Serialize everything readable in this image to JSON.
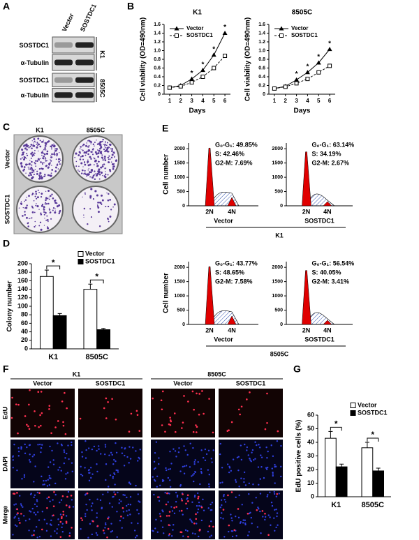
{
  "panel_letters": [
    "A",
    "B",
    "C",
    "D",
    "E",
    "F",
    "G"
  ],
  "blots": {
    "columns": [
      "Vector",
      "SOSTDC1"
    ],
    "groups": [
      {
        "name": "K1",
        "rows": [
          "SOSTDC1",
          "α-Tubulin"
        ]
      },
      {
        "name": "8505C",
        "rows": [
          "SOSTDC1",
          "α-Tubulin"
        ]
      }
    ]
  },
  "colony_images": {
    "columns": [
      "K1",
      "8505C"
    ],
    "rows": [
      "Vector",
      "SOSTDC1"
    ]
  },
  "flow_cytometry": {
    "y_label": "Cell number",
    "ylim": [
      0,
      2200
    ],
    "yticks": [
      0,
      500,
      1000,
      1500,
      2000
    ],
    "peak_labels": [
      "2N",
      "4N"
    ],
    "groups": [
      {
        "name": "K1",
        "panels": [
          {
            "name": "Vector",
            "stats": [
              "G₀-G₁: 49.85%",
              "S: 42.46%",
              "G2-M: 7.69%"
            ]
          },
          {
            "name": "SOSTDC1",
            "stats": [
              "G₀-G₁: 63.14%",
              "S: 34.19%",
              "G2-M: 2.67%"
            ]
          }
        ]
      },
      {
        "name": "8505C",
        "panels": [
          {
            "name": "Vector",
            "stats": [
              "G₀-G₁: 43.77%",
              "S: 48.65%",
              "G2-M: 7.58%"
            ]
          },
          {
            "name": "SOSTDC1",
            "stats": [
              "G₀-G₁: 56.54%",
              "S: 40.05%",
              "G2-M: 3.41%"
            ]
          }
        ]
      }
    ]
  },
  "edu_images": {
    "groups": [
      {
        "name": "K1",
        "columns": [
          "Vector",
          "SOSTDC1"
        ]
      },
      {
        "name": "8505C",
        "columns": [
          "Vector",
          "SOSTDC1"
        ]
      }
    ],
    "rows": [
      "EdU",
      "DAPI",
      "Merge"
    ]
  },
  "chart_data": [
    {
      "type": "line",
      "title": "K1",
      "x_label": "Days",
      "y_label": "Cell viability (OD=490nm)",
      "x": [
        1,
        2,
        3,
        4,
        5,
        6
      ],
      "xlim": [
        0.5,
        6.5
      ],
      "xticks": [
        1,
        2,
        3,
        4,
        5,
        6
      ],
      "ylim": [
        0,
        1.6
      ],
      "yticks": [
        0,
        0.2,
        0.4,
        0.6,
        0.8,
        {
          "value": 1,
          "label": "1.0"
        },
        1.2,
        1.4,
        1.6
      ],
      "series": [
        {
          "name": "Vector",
          "color": "#000000",
          "marker": "triangle",
          "line_style": "solid",
          "values": [
            0.15,
            0.2,
            0.35,
            0.55,
            0.9,
            1.4
          ]
        },
        {
          "name": "SOSTDC1",
          "color": "#000000",
          "marker": "square",
          "line_style": "dashed",
          "values": [
            0.15,
            0.18,
            0.27,
            0.4,
            0.6,
            0.88
          ]
        }
      ],
      "significance": [
        null,
        null,
        "*",
        "*",
        "*",
        "*"
      ]
    },
    {
      "type": "line",
      "title": "8505C",
      "x_label": "Days",
      "y_label": "Cell viability (OD=490nm)",
      "x": [
        1,
        2,
        3,
        4,
        5,
        6
      ],
      "xlim": [
        0.5,
        6.5
      ],
      "xticks": [
        1,
        2,
        3,
        4,
        5,
        6
      ],
      "ylim": [
        0,
        1.6
      ],
      "yticks": [
        0,
        0.2,
        0.4,
        0.6,
        0.8,
        {
          "value": 1,
          "label": "1.0"
        },
        1.2,
        1.4,
        1.6
      ],
      "series": [
        {
          "name": "Vector",
          "color": "#000000",
          "marker": "triangle",
          "line_style": "solid",
          "values": [
            0.13,
            0.18,
            0.33,
            0.5,
            0.72,
            1.03
          ]
        },
        {
          "name": "SOSTDC1",
          "color": "#000000",
          "marker": "square",
          "line_style": "dashed",
          "values": [
            0.13,
            0.17,
            0.25,
            0.35,
            0.5,
            0.65
          ]
        }
      ],
      "significance": [
        null,
        null,
        "*",
        "*",
        "*",
        "*"
      ]
    },
    {
      "type": "bar",
      "y_label": "Colony number",
      "categories": [
        "K1",
        "8505C"
      ],
      "ylim": [
        0,
        200
      ],
      "yticks": [
        0,
        20,
        40,
        60,
        80,
        100,
        120,
        140,
        160,
        180,
        200
      ],
      "series": [
        {
          "name": "Vector",
          "color": "#ffffff",
          "values": [
            170,
            140
          ],
          "errors": [
            15,
            12
          ]
        },
        {
          "name": "SOSTDC1",
          "color": "#000000",
          "values": [
            78,
            45
          ],
          "errors": [
            5,
            3
          ]
        }
      ],
      "significance": [
        "*",
        "*"
      ]
    },
    {
      "type": "bar",
      "y_label": "EdU positive cells (%)",
      "categories": [
        "K1",
        "8505C"
      ],
      "ylim": [
        0,
        60
      ],
      "yticks": [
        0,
        10,
        20,
        30,
        40,
        50,
        60
      ],
      "series": [
        {
          "name": "Vector",
          "color": "#ffffff",
          "values": [
            43,
            36
          ],
          "errors": [
            5,
            4
          ]
        },
        {
          "name": "SOSTDC1",
          "color": "#000000",
          "values": [
            22,
            19
          ],
          "errors": [
            2,
            2
          ]
        }
      ],
      "significance": [
        "*",
        "*"
      ]
    }
  ]
}
